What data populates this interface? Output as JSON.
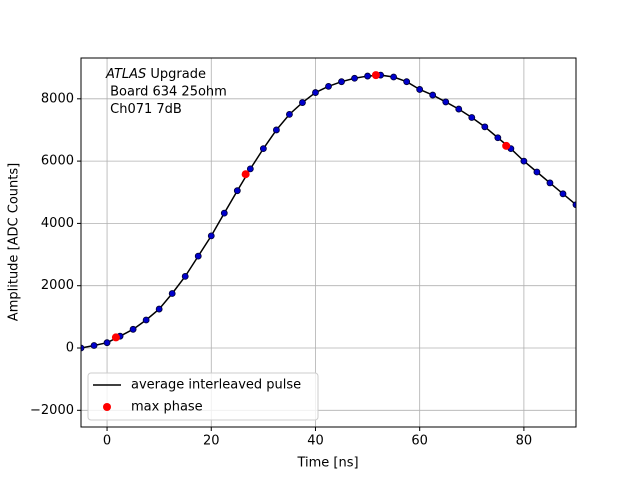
{
  "chart_data": {
    "type": "line",
    "xlabel": "Time [ns]",
    "ylabel": "Amplitude [ADC Counts]",
    "annotation": {
      "emphasis": "ATLAS",
      "lines": [
        " Upgrade",
        " Board 634 25ohm",
        " Ch071 7dB"
      ]
    },
    "xlim": [
      -5,
      90
    ],
    "ylim": [
      -2536,
      9310
    ],
    "xticks": [
      0,
      20,
      40,
      60,
      80
    ],
    "yticks": [
      {
        "value": -2000,
        "label": "−2000"
      },
      0,
      2000,
      4000,
      6000,
      8000
    ],
    "grid": true,
    "legend": "lower left",
    "series": [
      {
        "name": "average interleaved pulse",
        "color": "#000000",
        "marker_color": "#0000cc",
        "x": [
          -5,
          -2.5,
          0,
          2.5,
          5,
          7.5,
          10,
          12.5,
          15,
          17.5,
          20,
          22.5,
          25,
          27.5,
          30,
          32.5,
          35,
          37.5,
          40,
          42.5,
          45,
          47.5,
          50,
          52.5,
          55,
          57.5,
          60,
          62.5,
          65,
          67.5,
          70,
          72.5,
          75,
          77.5,
          80,
          82.5,
          85,
          87.5,
          90
        ],
        "values": [
          0,
          80,
          170,
          380,
          600,
          900,
          1250,
          1750,
          2300,
          2950,
          3600,
          4330,
          5050,
          5750,
          6400,
          7000,
          7500,
          7880,
          8200,
          8400,
          8550,
          8660,
          8730,
          8760,
          8700,
          8550,
          8300,
          8120,
          7900,
          7670,
          7400,
          7100,
          6750,
          6400,
          6000,
          5650,
          5300,
          4950,
          4600
        ]
      },
      {
        "name": "max phase",
        "color": "#ff0000",
        "style": "points",
        "x": [
          1.7,
          26.6,
          51.6,
          76.6
        ],
        "values": [
          340,
          5580,
          8760,
          6490
        ]
      }
    ]
  }
}
